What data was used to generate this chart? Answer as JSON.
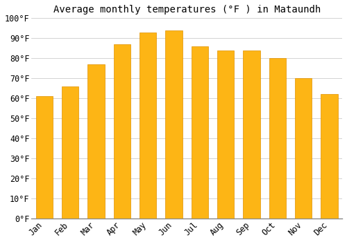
{
  "title": "Average monthly temperatures (°F ) in Mataundh",
  "months": [
    "Jan",
    "Feb",
    "Mar",
    "Apr",
    "May",
    "Jun",
    "Jul",
    "Aug",
    "Sep",
    "Oct",
    "Nov",
    "Dec"
  ],
  "values": [
    61,
    66,
    77,
    87,
    93,
    94,
    86,
    84,
    84,
    80,
    70,
    62
  ],
  "bar_color": "#FDB515",
  "bar_edge_color": "#E09000",
  "background_color": "#ffffff",
  "grid_color": "#cccccc",
  "ylim": [
    0,
    100
  ],
  "yticks": [
    0,
    10,
    20,
    30,
    40,
    50,
    60,
    70,
    80,
    90,
    100
  ],
  "title_fontsize": 10,
  "tick_fontsize": 8.5,
  "font_family": "monospace",
  "bar_width": 0.65
}
